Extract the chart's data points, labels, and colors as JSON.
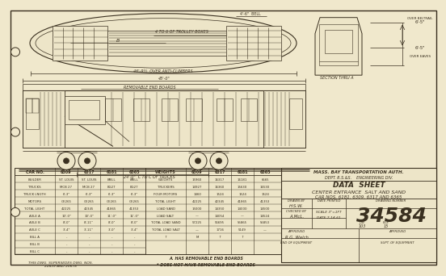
{
  "bg_color": "#f0e8cc",
  "paper_color": "#ede5c8",
  "line_color": "#3a3020",
  "dark_line": "#2a2015",
  "title_line1": "MASS. BAY TRANSPORTATION AUTH.",
  "title_line2": "DEPT. R.S.&S.    ENGINEERING DIV.",
  "sheet_title": "DATA  SHEET",
  "sheet_subtitle1": "CENTER ENTRANCE  SALT AND SAND",
  "sheet_subtitle2": "CAR NOS. 6181, 6309, 6317 AND 6365",
  "drawing_number": "34584",
  "drawn_by": "H.S.W.",
  "checked_by": "A.McL.",
  "scale": "3\"=1FT",
  "date": "7-14-61",
  "job": "103",
  "file": "15",
  "approved_eng": "R.G. Welch",
  "drawn_label": "DRAWN BY",
  "date_label": "DATE PRINTED",
  "drawing_number_label": "DRAWING NUMBER",
  "checked_label": "CHECKED BY",
  "approved_label": "APPROVED",
  "end_of_equipment": "END OF EQUIPMENT",
  "supersedes_text": "THIS DWG. SUPERSEDES DWG. NOS.\n22439 AND 20678",
  "note_a": "A. HAS REMOVABLE END BOARDS",
  "note_b": "* DOES NOT HAVE REMOVABLE END BOARDS",
  "section_label": "SECTION THRU A",
  "trolley_label": "4 TO 6 OF TROLLEY BOXES",
  "anti_climber_label": "46'-9½  OVER ANTI-CLIMBERS",
  "removable_boards_label": "REMOVABLE END BOARDS",
  "trucks_label": "24'-0\"  C TO C OF TRUCKS",
  "dim_length": "45'-0\"",
  "dim_over_beltrail": "6'-5\"",
  "over_beltrail_label": "OVER BELTRAIL",
  "dim_over_eaves": "6'-5\"",
  "over_eaves_label": "OVER EAVES"
}
